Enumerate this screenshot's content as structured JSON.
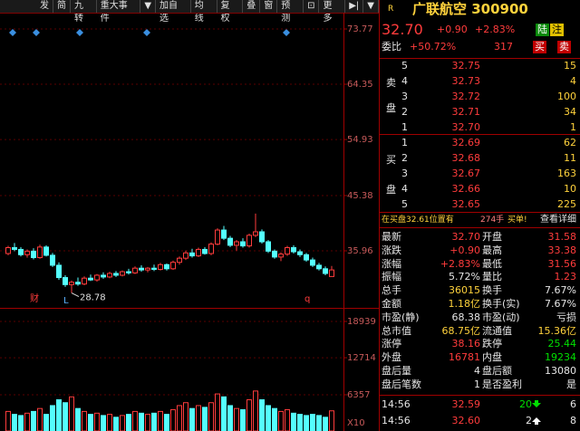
{
  "toolbar": [
    "发",
    "简",
    "九转",
    "重大事件",
    "▼",
    "加自选",
    "均线",
    "复权",
    "叠",
    "窗",
    "预测",
    "⊡",
    "更多",
    "▶|",
    "▼"
  ],
  "kline": {
    "price_ticks": [
      73.77,
      64.35,
      54.93,
      45.38,
      35.96
    ],
    "volume_ticks": [
      18939,
      12714,
      6357
    ],
    "volume_unit": "X10",
    "low_label": 28.78,
    "markers": [
      "财",
      "L",
      "q"
    ],
    "ohlc": [
      [
        35.5,
        36.8,
        35.2,
        36.5
      ],
      [
        36.5,
        37.3,
        35.9,
        36.2
      ],
      [
        36.2,
        36.6,
        35.0,
        35.3
      ],
      [
        35.3,
        36.2,
        34.8,
        35.9
      ],
      [
        35.9,
        36.4,
        34.5,
        34.8
      ],
      [
        34.8,
        37.0,
        34.6,
        36.6
      ],
      [
        36.6,
        36.9,
        35.0,
        35.2
      ],
      [
        35.2,
        35.6,
        33.2,
        33.5
      ],
      [
        33.5,
        34.0,
        31.0,
        31.4
      ],
      [
        31.4,
        31.8,
        29.8,
        30.2
      ],
      [
        30.2,
        30.9,
        28.78,
        30.6
      ],
      [
        30.6,
        31.4,
        30.0,
        30.3
      ],
      [
        30.3,
        31.6,
        30.1,
        31.3
      ],
      [
        31.3,
        31.9,
        30.8,
        31.0
      ],
      [
        31.0,
        32.0,
        30.7,
        31.8
      ],
      [
        31.8,
        32.3,
        31.2,
        31.5
      ],
      [
        31.5,
        32.4,
        31.3,
        32.1
      ],
      [
        32.1,
        32.5,
        31.5,
        31.8
      ],
      [
        31.8,
        32.6,
        31.6,
        32.4
      ],
      [
        32.4,
        32.9,
        31.9,
        32.2
      ],
      [
        32.2,
        33.3,
        32.0,
        33.0
      ],
      [
        33.0,
        33.5,
        32.4,
        32.7
      ],
      [
        32.7,
        33.2,
        32.3,
        33.0
      ],
      [
        33.0,
        33.6,
        32.5,
        32.8
      ],
      [
        32.8,
        33.9,
        32.6,
        33.6
      ],
      [
        33.6,
        33.8,
        32.6,
        32.9
      ],
      [
        32.9,
        34.3,
        32.7,
        34.0
      ],
      [
        34.0,
        35.0,
        33.6,
        34.7
      ],
      [
        34.7,
        36.0,
        34.4,
        35.6
      ],
      [
        35.6,
        36.3,
        34.8,
        35.1
      ],
      [
        35.1,
        36.5,
        34.9,
        36.2
      ],
      [
        36.2,
        36.6,
        35.3,
        35.5
      ],
      [
        35.5,
        37.4,
        35.2,
        37.1
      ],
      [
        37.1,
        39.8,
        36.9,
        39.5
      ],
      [
        39.5,
        40.2,
        37.8,
        38.1
      ],
      [
        38.1,
        38.5,
        36.6,
        36.9
      ],
      [
        36.9,
        37.8,
        36.0,
        37.5
      ],
      [
        37.5,
        38.1,
        36.5,
        36.8
      ],
      [
        36.8,
        38.9,
        36.5,
        38.6
      ],
      [
        38.6,
        42.3,
        38.3,
        39.2
      ],
      [
        39.2,
        39.6,
        37.2,
        37.5
      ],
      [
        37.5,
        37.8,
        35.6,
        35.9
      ],
      [
        35.9,
        36.2,
        34.6,
        34.9
      ],
      [
        34.9,
        35.7,
        34.2,
        35.4
      ],
      [
        35.4,
        36.8,
        35.1,
        36.5
      ],
      [
        36.5,
        36.9,
        35.5,
        35.8
      ],
      [
        35.8,
        36.2,
        34.9,
        35.3
      ],
      [
        35.3,
        35.6,
        34.1,
        34.4
      ],
      [
        34.4,
        34.8,
        33.2,
        33.5
      ],
      [
        33.5,
        33.9,
        32.6,
        32.9
      ],
      [
        32.9,
        33.3,
        31.8,
        32.1
      ],
      [
        31.58,
        33.38,
        31.56,
        32.7
      ]
    ],
    "volume": [
      3500,
      3000,
      2800,
      3200,
      3500,
      4000,
      3000,
      4500,
      5500,
      5000,
      6000,
      4000,
      3500,
      3000,
      3200,
      2800,
      3000,
      2500,
      2800,
      3000,
      3500,
      3200,
      3000,
      3200,
      3500,
      3000,
      3800,
      4500,
      5000,
      4000,
      4500,
      4200,
      5000,
      6500,
      6000,
      4500,
      4000,
      3800,
      5500,
      7000,
      5500,
      4500,
      4000,
      3500,
      3800,
      3200,
      3000,
      2800,
      3000,
      2800,
      2500,
      3602
    ]
  },
  "quote": {
    "flag": "R",
    "title": "广联航空 300900",
    "price": "32.70",
    "change": "+0.90",
    "pct": "+2.83%",
    "badges": [
      "陆",
      "注"
    ],
    "weibi_label": "委比",
    "weibi": "+50.72%",
    "weicha": "317",
    "buttons": [
      "买",
      "卖"
    ]
  },
  "orderbook": {
    "sell_label": [
      "卖",
      "盘"
    ],
    "buy_label": [
      "买",
      "盘"
    ],
    "sell": [
      [
        "5",
        "32.75",
        "15"
      ],
      [
        "4",
        "32.73",
        "4"
      ],
      [
        "3",
        "32.72",
        "100"
      ],
      [
        "2",
        "32.71",
        "34"
      ],
      [
        "1",
        "32.70",
        "1"
      ]
    ],
    "buy": [
      [
        "1",
        "32.69",
        "62"
      ],
      [
        "2",
        "32.68",
        "11"
      ],
      [
        "3",
        "32.67",
        "163"
      ],
      [
        "4",
        "32.66",
        "10"
      ],
      [
        "5",
        "32.65",
        "225"
      ]
    ]
  },
  "notice": [
    "在买盘32.61位置有",
    "274手",
    "买单!"
  ],
  "detail": "查看详细",
  "stats": [
    [
      "最新",
      "32.70",
      "开盘",
      "31.58"
    ],
    [
      "涨跌",
      "+0.90",
      "最高",
      "33.38"
    ],
    [
      "涨幅",
      "+2.83%",
      "最低",
      "31.56"
    ],
    [
      "振幅",
      "5.72%",
      "量比",
      "1.23"
    ],
    [
      "总手",
      "36015",
      "换手",
      "7.67%"
    ],
    [
      "金额",
      "1.18亿",
      "换手(实)",
      "7.67%"
    ],
    [
      "市盈(静)",
      "68.38",
      "市盈(动)",
      "亏损"
    ],
    [
      "总市值",
      "68.75亿",
      "流通值",
      "15.36亿"
    ],
    [
      "涨停",
      "38.16",
      "跌停",
      "25.44"
    ],
    [
      "外盘",
      "16781",
      "内盘",
      "19234"
    ],
    [
      "盘后量",
      "4",
      "盘后额",
      "13080"
    ],
    [
      "盘后笔数",
      "1",
      "是否盈利",
      "是"
    ]
  ],
  "ticks": [
    [
      "14:56",
      "32.59",
      "20",
      "6"
    ],
    [
      "14:56",
      "32.60",
      "2",
      "8"
    ]
  ]
}
